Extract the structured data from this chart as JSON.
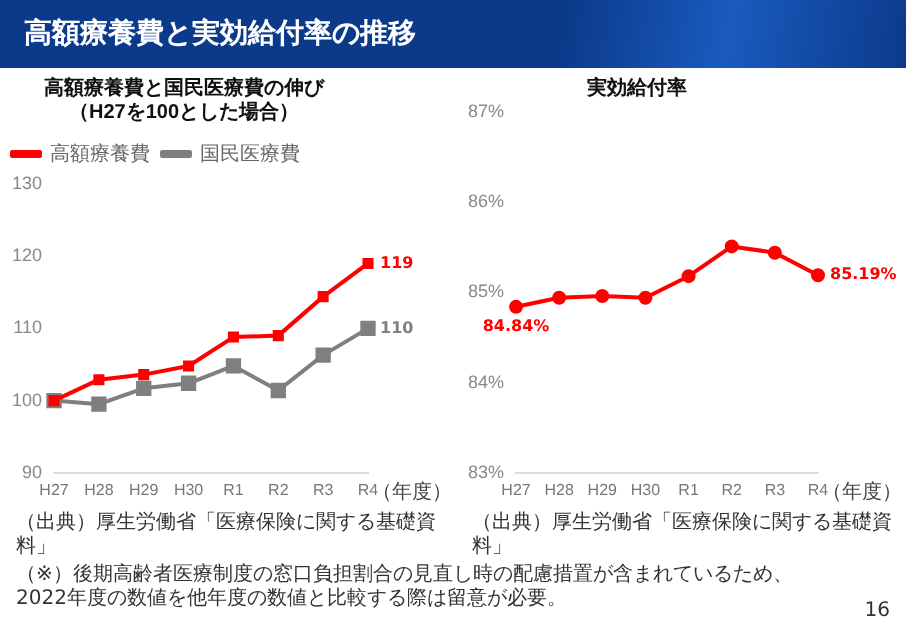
{
  "chart_data": [
    {
      "type": "line",
      "title": "高額療養費と国民医療費の伸び",
      "subtitle": "（H27を100とした場合）",
      "xlabel": "（年度）",
      "categories": [
        "H27",
        "H28",
        "H29",
        "H30",
        "R1",
        "R2",
        "R3",
        "R4"
      ],
      "series": [
        {
          "name": "高額療養費",
          "color": "#ff0000",
          "values": [
            100,
            102.9,
            103.6,
            104.8,
            108.8,
            109.0,
            114.4,
            119
          ],
          "value_labels": [
            null,
            null,
            null,
            null,
            null,
            null,
            null,
            "119"
          ]
        },
        {
          "name": "国民医療費",
          "color": "#7f7f7f",
          "values": [
            100,
            99.5,
            101.7,
            102.4,
            104.8,
            101.4,
            106.3,
            110
          ],
          "value_labels": [
            null,
            null,
            null,
            null,
            null,
            null,
            null,
            "110"
          ]
        }
      ],
      "ylim": [
        90,
        130
      ],
      "yticks": [
        90,
        100,
        110,
        120,
        130
      ],
      "grid": false,
      "legend": "top left",
      "marker": "square",
      "line_style": "solid",
      "annotations": [
        "高額療養費と実効給付率の推移",
        "（出典）厚生労働省「医療保険に関する基礎資料」",
        "（※）後期高齢者医療制度の窓口負担割合の見直し時の配慮措置が含まれているため、2022年度の数値を他年度の数値と比較する際は留意が必要。",
        "16"
      ]
    },
    {
      "type": "line",
      "title": "実効給付率",
      "xlabel": "（年度）",
      "categories": [
        "H27",
        "H28",
        "H29",
        "H30",
        "R1",
        "R2",
        "R3",
        "R4"
      ],
      "series": [
        {
          "color": "#ff0000",
          "values": [
            84.84,
            84.94,
            84.96,
            84.94,
            85.18,
            85.51,
            85.44,
            85.19
          ],
          "value_labels": [
            "84.84%",
            null,
            null,
            null,
            null,
            null,
            null,
            "85.19%"
          ]
        }
      ],
      "ylim": [
        83,
        87
      ],
      "yticks": [
        {
          "value": 83,
          "label": "83%"
        },
        {
          "value": 84,
          "label": "84%"
        },
        {
          "value": 85,
          "label": "85%"
        },
        {
          "value": 86,
          "label": "86%"
        },
        {
          "value": 87,
          "label": "87%"
        }
      ],
      "grid": false,
      "legend": false,
      "marker": "circle",
      "line_style": "solid",
      "annotations": [
        "（出典）厚生労働省「医療保険に関する基礎資料」"
      ]
    }
  ]
}
